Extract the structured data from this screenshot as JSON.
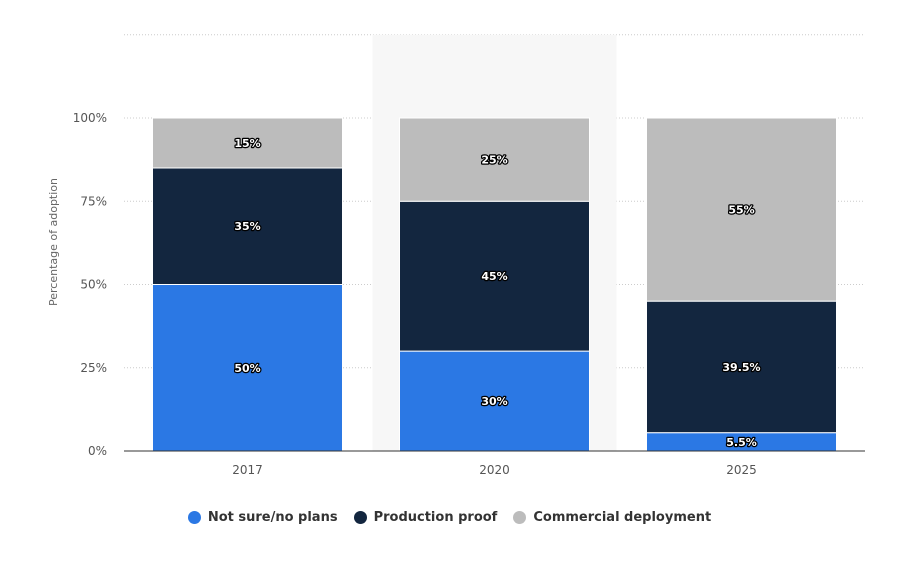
{
  "chart_data": {
    "type": "bar",
    "stacked": true,
    "categories": [
      "2017",
      "2020",
      "2025"
    ],
    "highlighted_category": "2020",
    "series": [
      {
        "name": "Not sure/no plans",
        "color": "#2b78e4",
        "values": [
          50,
          30,
          5.5
        ],
        "labels": [
          "50%",
          "30%",
          "5.5%"
        ]
      },
      {
        "name": "Production proof",
        "color": "#13263f",
        "values": [
          35,
          45,
          39.5
        ],
        "labels": [
          "35%",
          "45%",
          "39.5%"
        ]
      },
      {
        "name": "Commercial deployment",
        "color": "#bcbcbc",
        "values": [
          15,
          25,
          55
        ],
        "labels": [
          "15%",
          "25%",
          "55%"
        ]
      }
    ],
    "y_ticks": [
      0,
      25,
      50,
      75,
      100
    ],
    "y_tick_labels": [
      "0%",
      "25%",
      "50%",
      "75%",
      "100%"
    ],
    "ylim": [
      0,
      125
    ],
    "ylabel": "Percentage of adoption",
    "xlabel": "",
    "title": "",
    "grid": true,
    "legend_position": "bottom"
  }
}
